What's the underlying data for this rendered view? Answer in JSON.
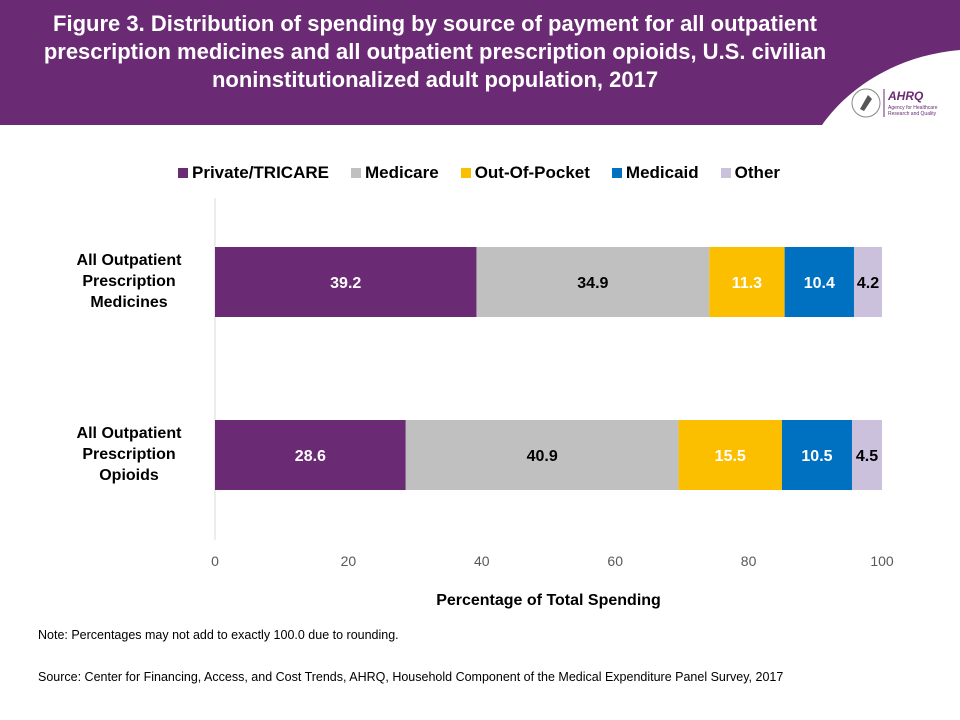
{
  "header": {
    "title": "Figure 3. Distribution of spending by source of payment for all outpatient prescription medicines and all outpatient prescription opioids, U.S. civilian noninstitutionalized adult population, 2017",
    "logo_text": "AHRQ Agency for Healthcare Research and Quality",
    "brand_color": "#6a2a74"
  },
  "chart_data": {
    "type": "bar",
    "orientation": "horizontal",
    "stacked": true,
    "categories": [
      "All Outpatient Prescription Medicines",
      "All Outpatient Prescription Opioids"
    ],
    "category_lines": [
      [
        "All Outpatient",
        "Prescription",
        "Medicines"
      ],
      [
        "All Outpatient",
        "Prescription",
        "Opioids"
      ]
    ],
    "series": [
      {
        "name": "Private/TRICARE",
        "color": "#6a2a74",
        "values": [
          39.2,
          28.6
        ]
      },
      {
        "name": "Medicare",
        "color": "#c0c0c0",
        "values": [
          34.9,
          40.9
        ]
      },
      {
        "name": "Out-Of-Pocket",
        "color": "#fcbf00",
        "values": [
          11.3,
          15.5
        ]
      },
      {
        "name": "Medicaid",
        "color": "#0070c0",
        "values": [
          10.4,
          10.5
        ]
      },
      {
        "name": "Other",
        "color": "#ccc1dc",
        "values": [
          4.2,
          4.5
        ]
      }
    ],
    "xlabel": "Percentage of Total Spending",
    "xlim": [
      0,
      100
    ],
    "xticks": [
      0,
      20,
      40,
      60,
      80,
      100
    ],
    "legend": "top"
  },
  "notes": {
    "note": "Note: Percentages may not add to exactly 100.0 due to rounding.",
    "source": "Source: Center for Financing, Access, and Cost Trends, AHRQ, Household Component of the Medical Expenditure Panel Survey, 2017"
  }
}
